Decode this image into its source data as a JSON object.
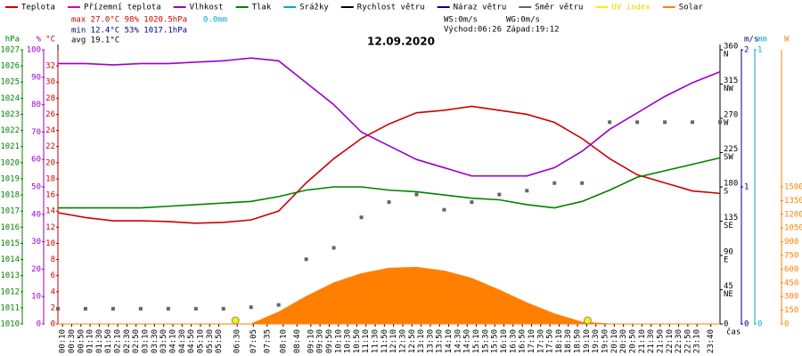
{
  "chart_data": {
    "type": "multi-axis-time",
    "title": "12.09.2020",
    "stats": {
      "max": "max 27.0°C  98%  1020.5hPa",
      "max_rain": "0.0mm",
      "min": "min 12.4°C  53%  1017.1hPa",
      "avg": "avg 19.1°C",
      "ws": "WS:0m/s",
      "wg": "WG:0m/s",
      "sunrise": "Východ:06:26",
      "sunset": "Západ:19:12"
    },
    "sun_markers_x": [
      6.433,
      19.2
    ],
    "xlabel": "čas",
    "xlim": [
      0,
      24
    ],
    "xticks": [
      {
        "value": 0.167,
        "label": "00:10"
      },
      {
        "value": 0.5,
        "label": "00:30"
      },
      {
        "value": 0.833,
        "label": "00:50"
      },
      {
        "value": 1.167,
        "label": "01:10"
      },
      {
        "value": 1.5,
        "label": "01:30"
      },
      {
        "value": 1.833,
        "label": "01:50"
      },
      {
        "value": 2.167,
        "label": "02:10"
      },
      {
        "value": 2.5,
        "label": "02:30"
      },
      {
        "value": 2.833,
        "label": "02:50"
      },
      {
        "value": 3.167,
        "label": "03:10"
      },
      {
        "value": 3.5,
        "label": "03:30"
      },
      {
        "value": 3.833,
        "label": "03:50"
      },
      {
        "value": 4.167,
        "label": "04:10"
      },
      {
        "value": 4.5,
        "label": "04:30"
      },
      {
        "value": 4.833,
        "label": "04:50"
      },
      {
        "value": 5.167,
        "label": "05:10"
      },
      {
        "value": 5.5,
        "label": "05:30"
      },
      {
        "value": 5.833,
        "label": "05:50"
      },
      {
        "value": 6.5,
        "label": "06:30"
      },
      {
        "value": 7.083,
        "label": "07:05"
      },
      {
        "value": 7.583,
        "label": "07:35"
      },
      {
        "value": 8.167,
        "label": "08:10"
      },
      {
        "value": 8.667,
        "label": "08:40"
      },
      {
        "value": 9.167,
        "label": "09:10"
      },
      {
        "value": 9.5,
        "label": "09:30"
      },
      {
        "value": 9.833,
        "label": "09:50"
      },
      {
        "value": 10.167,
        "label": "10:10"
      },
      {
        "value": 10.5,
        "label": "10:30"
      },
      {
        "value": 10.833,
        "label": "10:50"
      },
      {
        "value": 11.167,
        "label": "11:10"
      },
      {
        "value": 11.5,
        "label": "11:30"
      },
      {
        "value": 11.833,
        "label": "11:50"
      },
      {
        "value": 12.167,
        "label": "12:10"
      },
      {
        "value": 12.5,
        "label": "12:30"
      },
      {
        "value": 12.833,
        "label": "12:50"
      },
      {
        "value": 13.167,
        "label": "13:10"
      },
      {
        "value": 13.5,
        "label": "13:30"
      },
      {
        "value": 13.833,
        "label": "13:50"
      },
      {
        "value": 14.167,
        "label": "14:10"
      },
      {
        "value": 14.5,
        "label": "14:30"
      },
      {
        "value": 14.833,
        "label": "14:50"
      },
      {
        "value": 15.167,
        "label": "15:10"
      },
      {
        "value": 15.5,
        "label": "15:30"
      },
      {
        "value": 15.833,
        "label": "15:50"
      },
      {
        "value": 16.167,
        "label": "16:10"
      },
      {
        "value": 16.5,
        "label": "16:30"
      },
      {
        "value": 16.833,
        "label": "16:50"
      },
      {
        "value": 17.167,
        "label": "17:10"
      },
      {
        "value": 17.5,
        "label": "17:30"
      },
      {
        "value": 17.833,
        "label": "17:50"
      },
      {
        "value": 18.167,
        "label": "18:10"
      },
      {
        "value": 18.5,
        "label": "18:30"
      },
      {
        "value": 18.833,
        "label": "18:50"
      },
      {
        "value": 19.167,
        "label": "19:10"
      },
      {
        "value": 19.5,
        "label": "19:30"
      },
      {
        "value": 19.833,
        "label": "19:50"
      },
      {
        "value": 20.167,
        "label": "20:10"
      },
      {
        "value": 20.5,
        "label": "20:30"
      },
      {
        "value": 20.833,
        "label": "20:50"
      },
      {
        "value": 21.167,
        "label": "21:10"
      },
      {
        "value": 21.5,
        "label": "21:30"
      },
      {
        "value": 21.833,
        "label": "21:50"
      },
      {
        "value": 22.167,
        "label": "22:10"
      },
      {
        "value": 22.5,
        "label": "22:30"
      },
      {
        "value": 22.833,
        "label": "22:50"
      },
      {
        "value": 23.167,
        "label": "23:10"
      },
      {
        "value": 23.667,
        "label": "23:40"
      }
    ],
    "axes": {
      "hpa": {
        "title": "hPa",
        "color": "#008000",
        "lim": [
          1010,
          1027
        ],
        "ticks": [
          1010,
          1011,
          1012,
          1013,
          1014,
          1015,
          1016,
          1017,
          1018,
          1019,
          1020,
          1021,
          1022,
          1023,
          1024,
          1025,
          1026,
          1027
        ]
      },
      "pct": {
        "title": "%",
        "color": "#9900cc",
        "lim": [
          0,
          100
        ],
        "ticks": [
          0,
          10,
          20,
          30,
          40,
          50,
          60,
          70,
          80,
          90,
          100
        ]
      },
      "temp": {
        "title": "°C",
        "color": "#cc0000",
        "lim": [
          0,
          34
        ],
        "ticks": [
          0,
          2,
          4,
          6,
          8,
          10,
          12,
          14,
          16,
          18,
          20,
          22,
          24,
          26,
          28,
          30,
          32
        ]
      },
      "dir": {
        "title": "",
        "color": "#000000",
        "lim": [
          0,
          360
        ],
        "ticks": [
          {
            "value": 0,
            "label": ""
          },
          {
            "value": 45,
            "label": "NE"
          },
          {
            "value": 90,
            "label": "E"
          },
          {
            "value": 135,
            "label": "SE"
          },
          {
            "value": 180,
            "label": "S"
          },
          {
            "value": 225,
            "label": "SW"
          },
          {
            "value": 270,
            "label": "W"
          },
          {
            "value": 315,
            "label": "NW"
          },
          {
            "value": 360,
            "label": "N"
          }
        ]
      },
      "ms": {
        "title": "m/s",
        "color": "#000080",
        "lim": [
          0,
          2
        ],
        "ticks": [
          0,
          1,
          2
        ]
      },
      "mm": {
        "title": "mm",
        "color": "#00aacc",
        "lim": [
          0,
          1
        ],
        "ticks": [
          0,
          1
        ]
      },
      "w": {
        "title": "W",
        "color": "#ff8000",
        "lim": [
          0,
          3000
        ],
        "ticks": [
          0,
          150,
          300,
          450,
          600,
          750,
          900,
          1050,
          1200,
          1350,
          1500
        ]
      }
    },
    "x": [
      0,
      1,
      2,
      3,
      4,
      5,
      6,
      7,
      8,
      9,
      10,
      11,
      12,
      13,
      14,
      15,
      16,
      17,
      18,
      19,
      20,
      21,
      22,
      23,
      24
    ],
    "series": [
      {
        "name": "Teplota",
        "color": "#cc0000",
        "axis": "temp",
        "style": "line",
        "values": [
          13.8,
          13.2,
          12.8,
          12.8,
          12.7,
          12.5,
          12.6,
          12.9,
          14.0,
          17.5,
          20.5,
          23.0,
          24.8,
          26.2,
          26.5,
          27.0,
          26.5,
          26.0,
          25.0,
          23.0,
          20.5,
          18.5,
          17.5,
          16.5,
          16.2
        ]
      },
      {
        "name": "Přízemní teplota",
        "color": "#cc00cc",
        "axis": "temp",
        "style": "line",
        "values": [
          null,
          null,
          null,
          null,
          null,
          null,
          null,
          null,
          null,
          null,
          null,
          null,
          null,
          null,
          null,
          null,
          null,
          null,
          null,
          null,
          null,
          null,
          null,
          null,
          null
        ]
      },
      {
        "name": "Vlhkost",
        "color": "#9900cc",
        "axis": "pct",
        "style": "line",
        "values": [
          95,
          95,
          94.5,
          95,
          95,
          95.5,
          96,
          97,
          96,
          88,
          80,
          70,
          65,
          60,
          57,
          54,
          54,
          54,
          57,
          63,
          71,
          77,
          83,
          88,
          92
        ]
      },
      {
        "name": "Tlak",
        "color": "#008000",
        "axis": "hpa",
        "style": "line",
        "values": [
          1017.2,
          1017.2,
          1017.2,
          1017.2,
          1017.3,
          1017.4,
          1017.5,
          1017.6,
          1017.9,
          1018.3,
          1018.5,
          1018.5,
          1018.3,
          1018.2,
          1018.0,
          1017.8,
          1017.7,
          1017.4,
          1017.2,
          1017.6,
          1018.3,
          1019.1,
          1019.5,
          1019.9,
          1020.3
        ]
      },
      {
        "name": "Srážky",
        "color": "#00aacc",
        "axis": "mm",
        "style": "line",
        "values": [
          null,
          null,
          null,
          null,
          null,
          null,
          null,
          null,
          null,
          null,
          null,
          null,
          null,
          null,
          null,
          null,
          null,
          null,
          null,
          null,
          null,
          null,
          null,
          null,
          null
        ]
      },
      {
        "name": "Rychlost větru",
        "color": "#000000",
        "axis": "ms",
        "style": "line",
        "values": [
          null,
          null,
          null,
          null,
          null,
          null,
          null,
          null,
          null,
          null,
          null,
          null,
          null,
          null,
          null,
          null,
          null,
          null,
          null,
          null,
          null,
          null,
          null,
          null,
          null
        ]
      },
      {
        "name": "Náraz větru",
        "color": "#000099",
        "axis": "ms",
        "style": "line",
        "values": [
          null,
          null,
          null,
          null,
          null,
          null,
          null,
          null,
          null,
          null,
          null,
          null,
          null,
          null,
          null,
          null,
          null,
          null,
          null,
          null,
          null,
          null,
          null,
          null,
          null
        ]
      },
      {
        "name": "Směr větru",
        "color": "#666666",
        "axis": "dir",
        "style": "dots",
        "values": [
          20,
          20,
          20,
          20,
          20,
          20,
          20,
          22,
          25,
          85,
          100,
          140,
          160,
          170,
          150,
          160,
          170,
          175,
          185,
          185,
          265,
          265,
          265,
          265,
          265
        ]
      },
      {
        "name": "UV index",
        "color": "#ffee00",
        "axis": "w",
        "style": "line",
        "values": [
          null,
          null,
          null,
          null,
          null,
          null,
          null,
          null,
          null,
          null,
          null,
          null,
          null,
          null,
          null,
          null,
          null,
          null,
          null,
          null,
          null,
          null,
          null,
          null,
          null
        ]
      },
      {
        "name": "Solar",
        "color": "#ff8000",
        "axis": "w",
        "style": "area",
        "values": [
          0,
          0,
          0,
          0,
          0,
          0,
          0,
          0,
          130,
          300,
          450,
          550,
          610,
          620,
          580,
          500,
          370,
          230,
          110,
          20,
          0,
          0,
          0,
          0,
          0
        ]
      }
    ]
  }
}
